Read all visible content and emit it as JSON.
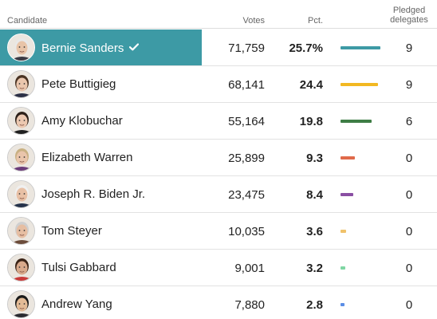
{
  "header": {
    "candidate": "Candidate",
    "votes": "Votes",
    "pct": "Pct.",
    "delegates_line1": "Pledged",
    "delegates_line2": "delegates"
  },
  "max_bar_pct": 25.7,
  "candidates": [
    {
      "name": "Bernie Sanders",
      "votes": "71,759",
      "pct": "25.7%",
      "pct_value": 25.7,
      "delegates": "9",
      "winner": true,
      "bar_color": "#3d9aa5",
      "icon": "checkmark-icon",
      "avatar": {
        "skin": "#e8c4a8",
        "hair": "#e8e8e8",
        "shirt": "#3a3a44"
      }
    },
    {
      "name": "Pete Buttigieg",
      "votes": "68,141",
      "pct": "24.4",
      "pct_value": 24.4,
      "delegates": "9",
      "winner": false,
      "bar_color": "#f2b822",
      "avatar": {
        "skin": "#eac6ad",
        "hair": "#4a3323",
        "shirt": "#2b2f45"
      }
    },
    {
      "name": "Amy Klobuchar",
      "votes": "55,164",
      "pct": "19.8",
      "pct_value": 19.8,
      "delegates": "6",
      "winner": false,
      "bar_color": "#3e7d45",
      "avatar": {
        "skin": "#ecc8b0",
        "hair": "#2d2018",
        "shirt": "#1f1f1f"
      }
    },
    {
      "name": "Elizabeth Warren",
      "votes": "25,899",
      "pct": "9.3",
      "pct_value": 9.3,
      "delegates": "0",
      "winner": false,
      "bar_color": "#e06a4a",
      "avatar": {
        "skin": "#e9c5ab",
        "hair": "#c9b183",
        "shirt": "#6b3c7a"
      }
    },
    {
      "name": "Joseph R. Biden Jr.",
      "votes": "23,475",
      "pct": "8.4",
      "pct_value": 8.4,
      "delegates": "0",
      "winner": false,
      "bar_color": "#8a4fa3",
      "avatar": {
        "skin": "#e8c0a5",
        "hair": "#f0f0f0",
        "shirt": "#25324a"
      }
    },
    {
      "name": "Tom Steyer",
      "votes": "10,035",
      "pct": "3.6",
      "pct_value": 3.6,
      "delegates": "0",
      "winner": false,
      "bar_color": "#f0c26a",
      "avatar": {
        "skin": "#e6bea2",
        "hair": "#cfcfcf",
        "shirt": "#6b4b3a"
      }
    },
    {
      "name": "Tulsi Gabbard",
      "votes": "9,001",
      "pct": "3.2",
      "pct_value": 3.2,
      "delegates": "0",
      "winner": false,
      "bar_color": "#7fd6a3",
      "avatar": {
        "skin": "#d8a98b",
        "hair": "#3b2417",
        "shirt": "#c93a3a"
      }
    },
    {
      "name": "Andrew Yang",
      "votes": "7,880",
      "pct": "2.8",
      "pct_value": 2.8,
      "delegates": "0",
      "winner": false,
      "bar_color": "#5b8ee6",
      "avatar": {
        "skin": "#e3bb96",
        "hair": "#1a1a1a",
        "shirt": "#2a2a30"
      }
    }
  ]
}
